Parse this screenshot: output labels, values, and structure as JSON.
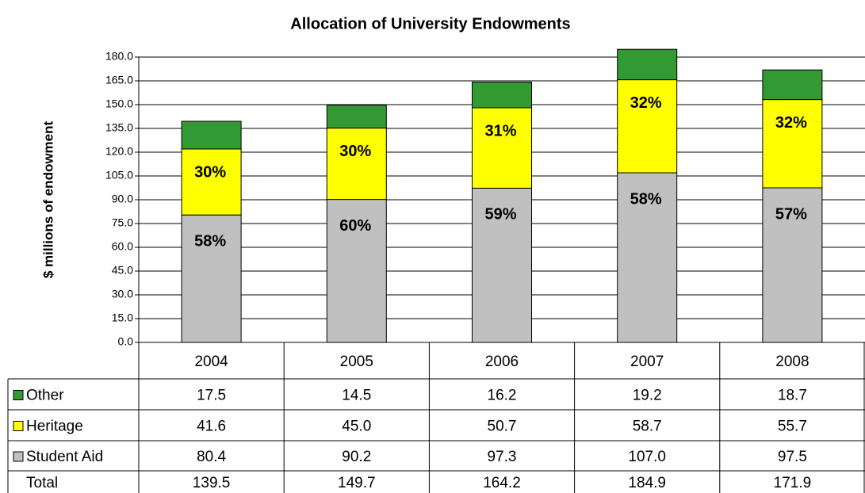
{
  "chart_data": {
    "type": "stacked-bar",
    "title": "Allocation of University Endowments",
    "y_label": "$ millions of endowment",
    "categories": [
      "2004",
      "2005",
      "2006",
      "2007",
      "2008"
    ],
    "ylim": [
      0,
      180
    ],
    "yticks": [
      {
        "value": 0,
        "label": "0.0"
      },
      {
        "value": 15,
        "label": "15.0"
      },
      {
        "value": 30,
        "label": "30.0"
      },
      {
        "value": 45,
        "label": "45.0"
      },
      {
        "value": 60,
        "label": "60.0"
      },
      {
        "value": 75,
        "label": "75.0"
      },
      {
        "value": 90,
        "label": "90.0"
      },
      {
        "value": 105,
        "label": "105.0"
      },
      {
        "value": 120,
        "label": "120.0"
      },
      {
        "value": 135,
        "label": "135.0"
      },
      {
        "value": 150,
        "label": "150.0"
      },
      {
        "value": 165,
        "label": "165.0"
      },
      {
        "value": 180,
        "label": "180.0"
      }
    ],
    "grid": true,
    "series": [
      {
        "name": "Student Aid",
        "color": "#c0c0c0",
        "values": [
          80.4,
          90.2,
          97.3,
          107.0,
          97.5
        ],
        "value_labels": [
          "80.4",
          "90.2",
          "97.3",
          "107.0",
          "97.5"
        ],
        "share_labels": [
          "58%",
          "60%",
          "59%",
          "58%",
          "57%"
        ]
      },
      {
        "name": "Heritage",
        "color": "#ffff00",
        "values": [
          41.6,
          45.0,
          50.7,
          58.7,
          55.7
        ],
        "value_labels": [
          "41.6",
          "45.0",
          "50.7",
          "58.7",
          "55.7"
        ],
        "share_labels": [
          "30%",
          "30%",
          "31%",
          "32%",
          "32%"
        ]
      },
      {
        "name": "Other",
        "color": "#339933",
        "values": [
          17.5,
          14.5,
          16.2,
          19.2,
          18.7
        ],
        "value_labels": [
          "17.5",
          "14.5",
          "16.2",
          "19.2",
          "18.7"
        ]
      }
    ],
    "total_label": "Total",
    "totals": [
      139.5,
      149.7,
      164.2,
      184.9,
      171.9
    ]
  }
}
